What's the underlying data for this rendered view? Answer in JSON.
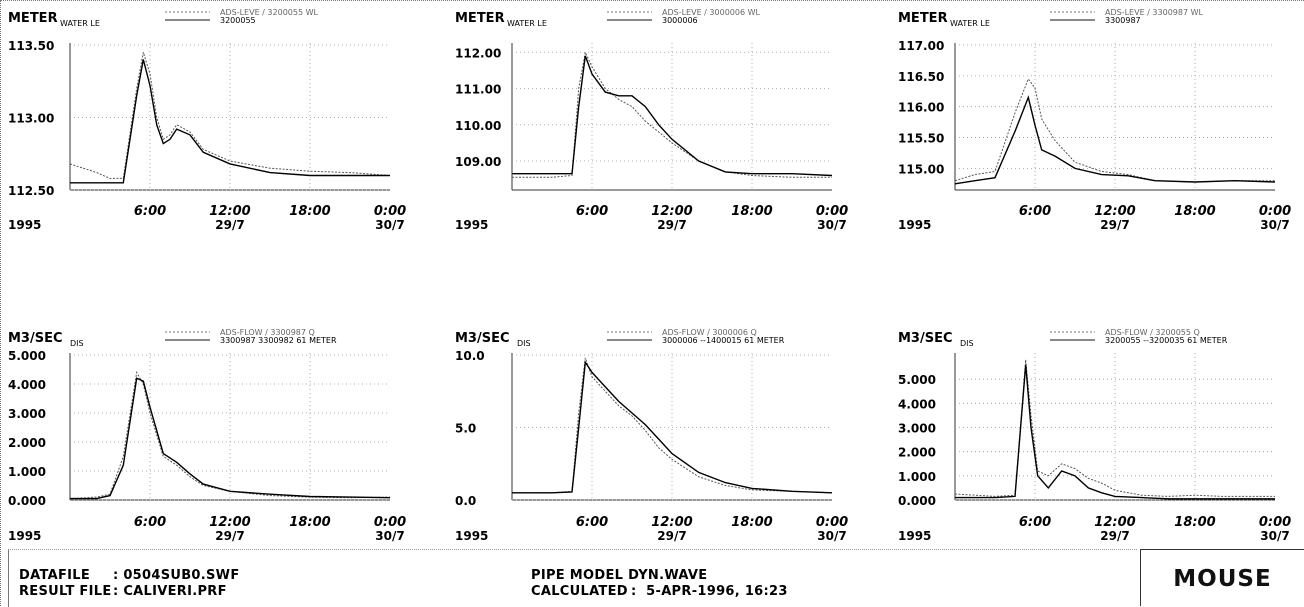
{
  "chart_data": [
    {
      "type": "line",
      "unit_label": "METER",
      "series_label": "WATER LE",
      "legend": [
        "ADS-LEVE / 3200055 WL",
        "3200055"
      ],
      "ylim": [
        112.5,
        113.5
      ],
      "yticks": [
        "113.50",
        "113.00",
        "112.50"
      ],
      "x_hours": [
        0,
        2,
        3,
        4,
        5,
        5.5,
        6,
        6.5,
        7,
        7.5,
        8,
        9,
        10,
        12,
        15,
        18,
        21,
        24
      ],
      "series": [
        {
          "values": [
            112.68,
            112.62,
            112.58,
            112.58,
            113.2,
            113.45,
            113.3,
            113.0,
            112.85,
            112.88,
            112.95,
            112.9,
            112.78,
            112.7,
            112.65,
            112.63,
            112.62,
            112.6
          ]
        },
        {
          "values": [
            112.55,
            112.55,
            112.55,
            112.55,
            113.15,
            113.4,
            113.22,
            112.95,
            112.82,
            112.85,
            112.92,
            112.88,
            112.76,
            112.68,
            112.62,
            112.6,
            112.6,
            112.6
          ]
        }
      ],
      "xticks": [
        "6:00",
        "12:00",
        "18:00",
        "0:00"
      ],
      "year": "1995",
      "date1": "29/7",
      "date2": "30/7"
    },
    {
      "type": "line",
      "unit_label": "METER",
      "series_label": "WATER LE",
      "legend": [
        "ADS-LEVE / 3000006 WL",
        "3000006"
      ],
      "ylim": [
        108.2,
        112.2
      ],
      "yticks": [
        "112.00",
        "111.00",
        "110.00",
        "109.00"
      ],
      "x_hours": [
        0,
        3,
        4.5,
        5,
        5.5,
        6,
        7,
        8,
        9,
        10,
        11,
        12,
        14,
        16,
        18,
        21,
        24
      ],
      "series": [
        {
          "values": [
            108.55,
            108.55,
            108.6,
            111.0,
            112.0,
            111.6,
            111.0,
            110.7,
            110.5,
            110.1,
            109.8,
            109.5,
            109.0,
            108.7,
            108.6,
            108.55,
            108.55
          ]
        },
        {
          "values": [
            108.65,
            108.65,
            108.65,
            110.5,
            111.9,
            111.4,
            110.9,
            110.8,
            110.8,
            110.5,
            110.0,
            109.6,
            109.0,
            108.7,
            108.65,
            108.65,
            108.6
          ]
        }
      ],
      "xticks": [
        "6:00",
        "12:00",
        "18:00",
        "0:00"
      ],
      "year": "1995",
      "date1": "29/7",
      "date2": "30/7"
    },
    {
      "type": "line",
      "unit_label": "METER",
      "series_label": "WATER LE",
      "legend": [
        "ADS-LEVE / 3300987 WL",
        "3300987"
      ],
      "ylim": [
        114.65,
        117.0
      ],
      "yticks": [
        "117.00",
        "116.50",
        "116.00",
        "115.50",
        "115.00"
      ],
      "x_hours": [
        0,
        1.5,
        3,
        4.5,
        5.5,
        6,
        6.5,
        7.5,
        9,
        11,
        13,
        15,
        18,
        21,
        24
      ],
      "series": [
        {
          "values": [
            114.8,
            114.9,
            114.95,
            115.9,
            116.45,
            116.3,
            115.8,
            115.45,
            115.1,
            114.95,
            114.9,
            114.8,
            114.78,
            114.8,
            114.8
          ]
        },
        {
          "values": [
            114.75,
            114.8,
            114.85,
            115.6,
            116.15,
            115.7,
            115.3,
            115.2,
            115.0,
            114.9,
            114.88,
            114.8,
            114.78,
            114.8,
            114.78
          ]
        }
      ],
      "xticks": [
        "6:00",
        "12:00",
        "18:00",
        "0:00"
      ],
      "year": "1995",
      "date1": "29/7",
      "date2": "30/7"
    },
    {
      "type": "line",
      "unit_label": "M3/SEC",
      "series_label": "DIS",
      "legend": [
        "ADS-FLOW / 3300987 Q",
        "3300987   3300982   61  METER"
      ],
      "ylim": [
        0,
        5.0
      ],
      "yticks": [
        "5.000",
        "4.000",
        "3.000",
        "2.000",
        "1.000",
        "0.000"
      ],
      "x_hours": [
        0,
        2,
        3,
        4,
        5,
        5.5,
        6,
        7,
        8,
        9,
        10,
        12,
        15,
        18,
        21,
        24
      ],
      "series": [
        {
          "values": [
            0.05,
            0.1,
            0.2,
            1.5,
            4.4,
            4.0,
            3.0,
            1.5,
            1.2,
            0.8,
            0.5,
            0.3,
            0.15,
            0.1,
            0.08,
            0.1
          ]
        },
        {
          "values": [
            0.05,
            0.05,
            0.15,
            1.2,
            4.2,
            4.1,
            3.2,
            1.6,
            1.3,
            0.9,
            0.55,
            0.3,
            0.2,
            0.12,
            0.1,
            0.08
          ]
        }
      ],
      "xticks": [
        "6:00",
        "12:00",
        "18:00",
        "0:00"
      ],
      "year": "1995",
      "date1": "29/7",
      "date2": "30/7"
    },
    {
      "type": "line",
      "unit_label": "M3/SEC",
      "series_label": "DIS",
      "legend": [
        "ADS-FLOW / 3000006 Q",
        "3000006  --1400015   61  METER"
      ],
      "ylim": [
        0,
        10.0
      ],
      "yticks": [
        "10.0",
        "5.0",
        "0.0"
      ],
      "x_hours": [
        0,
        3,
        4.5,
        5,
        5.5,
        6,
        7,
        8,
        9,
        10,
        11,
        12,
        14,
        16,
        18,
        21,
        24
      ],
      "series": [
        {
          "values": [
            0.5,
            0.5,
            0.6,
            6.0,
            9.8,
            8.5,
            7.5,
            6.5,
            5.8,
            4.8,
            3.6,
            2.8,
            1.6,
            1.0,
            0.7,
            0.6,
            0.5
          ]
        },
        {
          "values": [
            0.5,
            0.5,
            0.55,
            5.0,
            9.5,
            8.8,
            7.8,
            6.8,
            6.0,
            5.2,
            4.2,
            3.2,
            1.9,
            1.2,
            0.8,
            0.6,
            0.5
          ]
        }
      ],
      "xticks": [
        "6:00",
        "12:00",
        "18:00",
        "0:00"
      ],
      "year": "1995",
      "date1": "29/7",
      "date2": "30/7"
    },
    {
      "type": "line",
      "unit_label": "M3/SEC",
      "series_label": "DIS",
      "legend": [
        "ADS-FLOW / 3200055 Q",
        "3200055 --3200035   61  METER"
      ],
      "ylim": [
        0,
        6.0
      ],
      "yticks": [
        "5.000",
        "4.000",
        "3.000",
        "2.000",
        "1.000",
        "0.000"
      ],
      "x_hours": [
        0,
        1.5,
        3,
        4.5,
        5.3,
        5.7,
        6.2,
        7,
        8,
        9,
        10,
        11,
        12,
        14,
        16,
        18,
        20,
        24
      ],
      "series": [
        {
          "values": [
            0.25,
            0.2,
            0.15,
            0.2,
            5.8,
            3.5,
            1.2,
            1.0,
            1.5,
            1.3,
            0.9,
            0.7,
            0.4,
            0.2,
            0.15,
            0.2,
            0.15,
            0.15
          ]
        },
        {
          "values": [
            0.1,
            0.1,
            0.1,
            0.15,
            5.6,
            3.0,
            1.0,
            0.5,
            1.2,
            1.0,
            0.5,
            0.3,
            0.15,
            0.1,
            0.05,
            0.05,
            0.05,
            0.05
          ]
        }
      ],
      "xticks": [
        "6:00",
        "12:00",
        "18:00",
        "0:00"
      ],
      "year": "1995",
      "date1": "29/7",
      "date2": "30/7"
    }
  ],
  "footer": {
    "datafile_label": "DATAFILE",
    "datafile": ": 0504SUB0.SWF",
    "result_label": "RESULT FILE",
    "result": ": CALIVERI.PRF",
    "model": "PIPE MODEL DYN.WAVE",
    "calc_label": "CALCULATED",
    "calc": ":  5-APR-1996, 16:23",
    "logo": "MOUSE"
  }
}
